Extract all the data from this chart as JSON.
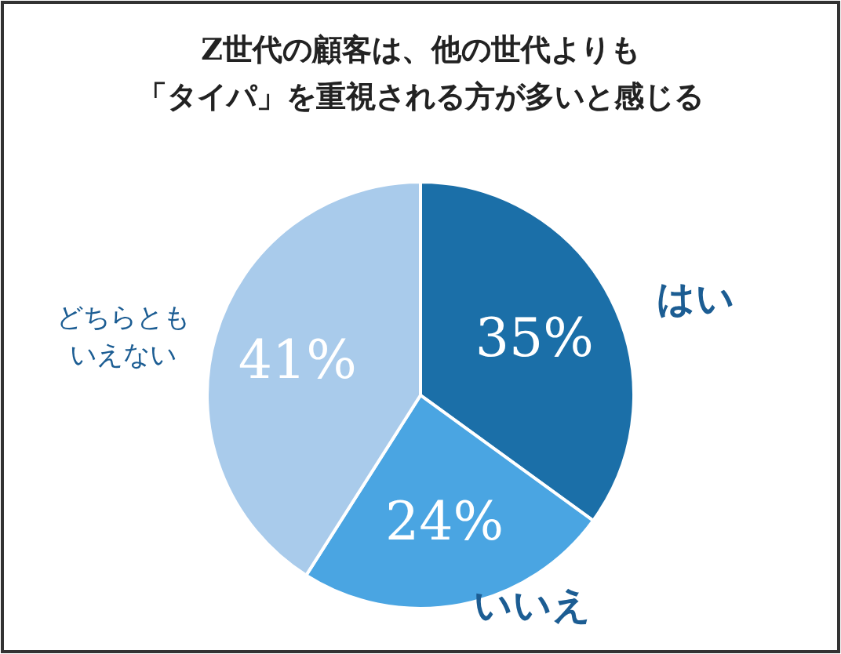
{
  "chart_data": {
    "type": "pie",
    "title": "Z世代の顧客は、他の世代よりも",
    "subtitle": "「タイパ」を重視される方が多いと感じる",
    "categories": [
      "はい",
      "いいえ",
      "どちらともいえない"
    ],
    "values": [
      35,
      24,
      41
    ],
    "value_labels": [
      "35%",
      "24%",
      "41%"
    ],
    "colors": [
      "#1b6fa8",
      "#4aa5e2",
      "#a9cbeb"
    ]
  }
}
